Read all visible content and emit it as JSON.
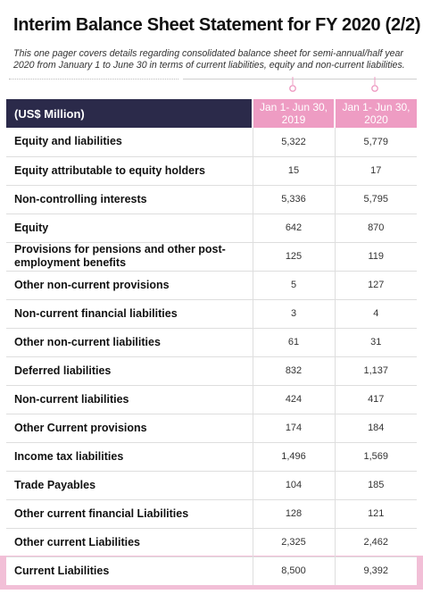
{
  "title": "Interim Balance Sheet Statement for FY 2020 (2/2)",
  "subtitle": "This one pager covers details regarding consolidated balance sheet for semi-annual/half year 2020 from January 1 to June 30 in terms of current liabilities, equity and non-current liabilities.",
  "colors": {
    "header_dark": "#2b2a4a",
    "header_pink": "#ee9cc3",
    "band_pink": "#f2bfd7"
  },
  "table": {
    "headers": [
      "(US$ Million)",
      "Jan 1- Jun 30, 2019",
      "Jan 1- Jun 30, 2020"
    ],
    "rows": [
      {
        "label": "Equity and liabilities",
        "v2019": "5,322",
        "v2020": "5,779"
      },
      {
        "label": "Equity attributable to equity holders",
        "v2019": "15",
        "v2020": "17"
      },
      {
        "label": "Non-controlling interests",
        "v2019": "5,336",
        "v2020": "5,795"
      },
      {
        "label": "Equity",
        "v2019": "642",
        "v2020": "870"
      },
      {
        "label": "Provisions for pensions and other post-employment benefits",
        "v2019": "125",
        "v2020": "119"
      },
      {
        "label": "Other non-current provisions",
        "v2019": "5",
        "v2020": "127"
      },
      {
        "label": "Non-current financial liabilities",
        "v2019": "3",
        "v2020": "4"
      },
      {
        "label": "Other non-current liabilities",
        "v2019": "61",
        "v2020": "31"
      },
      {
        "label": "Deferred liabilities",
        "v2019": "832",
        "v2020": "1,137"
      },
      {
        "label": "Non-current liabilities",
        "v2019": "424",
        "v2020": "417"
      },
      {
        "label": "Other Current provisions",
        "v2019": "174",
        "v2020": "184"
      },
      {
        "label": "Income tax liabilities",
        "v2019": "1,496",
        "v2020": "1,569"
      },
      {
        "label": "Trade Payables",
        "v2019": "104",
        "v2020": "185"
      },
      {
        "label": "Other current financial Liabilities",
        "v2019": "128",
        "v2020": "121"
      },
      {
        "label": "Other current Liabilities",
        "v2019": "2,325",
        "v2020": "2,462"
      },
      {
        "label": "Current Liabilities",
        "v2019": "8,500",
        "v2020": "9,392"
      }
    ]
  }
}
